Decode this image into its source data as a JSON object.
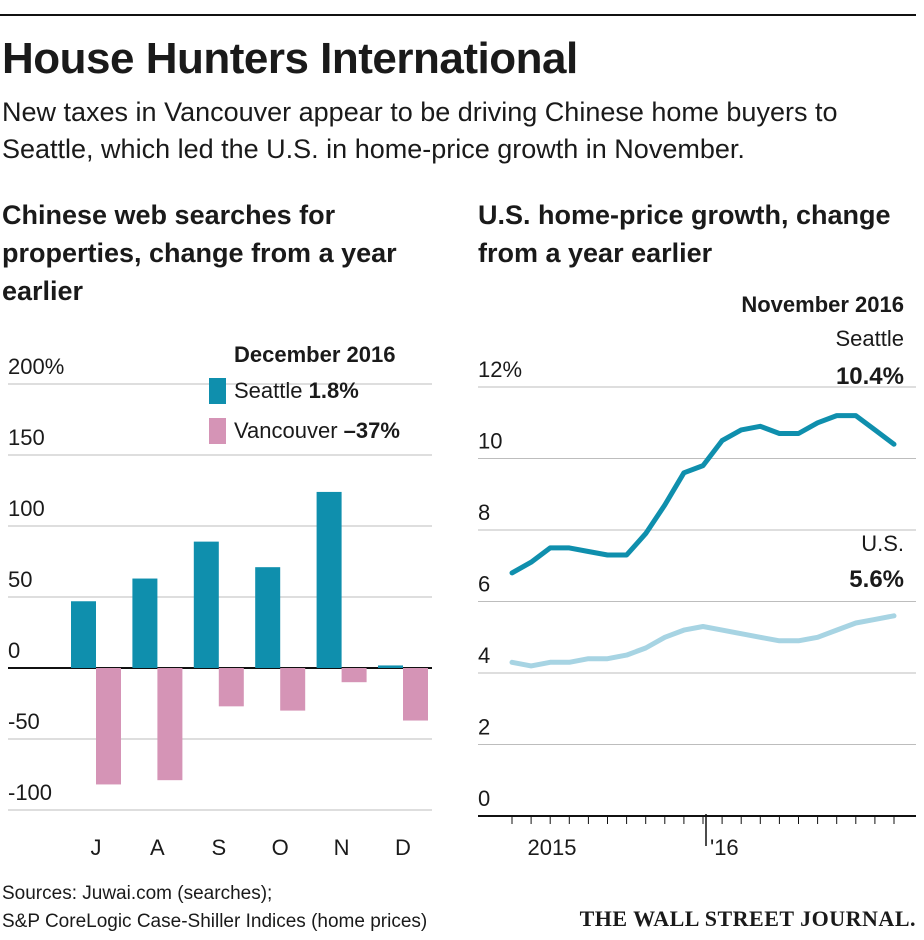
{
  "header": {
    "title": "House Hunters International",
    "subtitle": "New taxes in Vancouver appear to be driving Chinese home buyers to Seattle, which led the U.S. in home-price growth in November."
  },
  "colors": {
    "seattle_bar": "#0f8fad",
    "vancouver_bar": "#d594b6",
    "seattle_line": "#0f8fad",
    "us_line": "#a7d4e3",
    "grid": "#bdbdbd"
  },
  "chart_data": [
    {
      "type": "bar",
      "title": "Chinese web searches for properties, change from a year earlier",
      "categories": [
        "J",
        "A",
        "S",
        "O",
        "N",
        "D"
      ],
      "series": [
        {
          "name": "Seattle",
          "values": [
            47,
            63,
            89,
            71,
            124,
            1.8
          ]
        },
        {
          "name": "Vancouver",
          "values": [
            -82,
            -79,
            -27,
            -30,
            -10,
            -37
          ]
        }
      ],
      "ylim": [
        -100,
        200
      ],
      "y_ticks": [
        "200%",
        "150",
        "100",
        "50",
        "0",
        "-50",
        "-100"
      ],
      "legend": {
        "title": "December 2016",
        "items": [
          {
            "name": "Seattle",
            "value": "1.8%"
          },
          {
            "name": "Vancouver",
            "value": "–37%"
          }
        ]
      },
      "grid": true
    },
    {
      "type": "line",
      "title": "U.S. home-price growth, change from a year earlier",
      "x_labels": [
        "2015",
        "'16"
      ],
      "ylim": [
        0,
        12
      ],
      "y_ticks": [
        "12%",
        "10",
        "8",
        "6",
        "4",
        "2",
        "0"
      ],
      "series": [
        {
          "name": "Seattle",
          "values": [
            6.8,
            7.1,
            7.5,
            7.5,
            7.4,
            7.3,
            7.3,
            7.9,
            8.7,
            9.6,
            9.8,
            10.5,
            10.8,
            10.9,
            10.7,
            10.7,
            11.0,
            11.2,
            11.2,
            10.8,
            10.4
          ]
        },
        {
          "name": "U.S.",
          "values": [
            4.3,
            4.2,
            4.3,
            4.3,
            4.4,
            4.4,
            4.5,
            4.7,
            5.0,
            5.2,
            5.3,
            5.2,
            5.1,
            5.0,
            4.9,
            4.9,
            5.0,
            5.2,
            5.4,
            5.5,
            5.6
          ]
        }
      ],
      "annotation": {
        "heading": "November 2016",
        "seattle_label": "Seattle",
        "seattle_value": "10.4%",
        "us_label": "U.S.",
        "us_value": "5.6%"
      },
      "grid": true
    }
  ],
  "footer": {
    "sources_line1": "Sources: Juwai.com (searches);",
    "sources_line2": "S&P CoreLogic Case-Shiller Indices (home prices)",
    "brand": "THE WALL STREET JOURNAL."
  }
}
